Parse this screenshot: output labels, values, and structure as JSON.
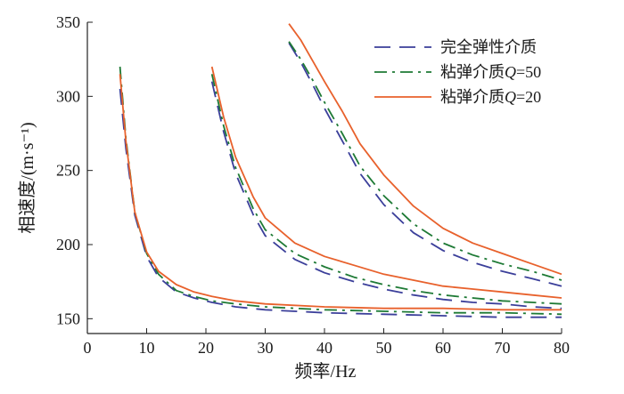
{
  "chart_data": {
    "type": "line",
    "xlabel": "频率/Hz",
    "ylabel": "相速度/(m·s⁻¹)",
    "xlim": [
      0,
      80
    ],
    "ylim": [
      140,
      350
    ],
    "xticks": [
      0,
      10,
      20,
      30,
      40,
      50,
      60,
      70,
      80
    ],
    "yticks": [
      150,
      200,
      250,
      300,
      350
    ],
    "grid": false,
    "legend_position": "top-right",
    "legend": [
      {
        "label_main": "完全弹性介质",
        "label_q": "",
        "label_eq": "",
        "color": "#3b3f9a",
        "dash": "18,10"
      },
      {
        "label_main": "粘弹介质",
        "label_q": "Q",
        "label_eq": "=50",
        "color": "#1e7a35",
        "dash": "14,6,3,6"
      },
      {
        "label_main": "粘弹介质",
        "label_q": "Q",
        "label_eq": "=20",
        "color": "#e8612c",
        "dash": ""
      }
    ],
    "series": [
      {
        "legend_index": 0,
        "mode": 0,
        "x": [
          5.5,
          6.5,
          8,
          10,
          12,
          15,
          18,
          21,
          25,
          30,
          40,
          50,
          60,
          70,
          80
        ],
        "y": [
          305,
          265,
          220,
          192,
          178,
          168,
          164,
          161,
          158,
          156,
          154,
          153,
          152,
          151,
          151
        ]
      },
      {
        "legend_index": 1,
        "mode": 0,
        "x": [
          5.5,
          6.5,
          8,
          10,
          12,
          15,
          18,
          21,
          25,
          30,
          40,
          50,
          60,
          70,
          80
        ],
        "y": [
          320,
          272,
          222,
          194,
          180,
          169,
          165,
          162,
          160,
          158,
          156,
          155,
          154,
          154,
          153
        ]
      },
      {
        "legend_index": 2,
        "mode": 0,
        "x": [
          5.5,
          6.5,
          8,
          10,
          12,
          15,
          18,
          21,
          25,
          30,
          40,
          50,
          60,
          70,
          80
        ],
        "y": [
          315,
          270,
          222,
          195,
          182,
          173,
          168,
          165,
          162,
          160,
          158,
          157,
          157,
          156,
          156
        ]
      },
      {
        "legend_index": 0,
        "mode": 1,
        "x": [
          21,
          23,
          25,
          28,
          30,
          35,
          40,
          45,
          50,
          55,
          60,
          65,
          70,
          75,
          80
        ],
        "y": [
          310,
          276,
          248,
          220,
          206,
          190,
          181,
          175,
          170,
          166,
          163,
          161,
          160,
          158,
          157
        ]
      },
      {
        "legend_index": 1,
        "mode": 1,
        "x": [
          21,
          23,
          25,
          28,
          30,
          35,
          40,
          45,
          50,
          55,
          60,
          65,
          70,
          75,
          80
        ],
        "y": [
          315,
          280,
          252,
          224,
          210,
          194,
          185,
          178,
          173,
          169,
          166,
          164,
          162,
          161,
          160
        ]
      },
      {
        "legend_index": 2,
        "mode": 1,
        "x": [
          21,
          23,
          25,
          28,
          30,
          35,
          40,
          45,
          50,
          55,
          60,
          65,
          70,
          75,
          80
        ],
        "y": [
          320,
          286,
          259,
          232,
          218,
          201,
          192,
          186,
          180,
          176,
          172,
          170,
          168,
          166,
          164
        ]
      },
      {
        "legend_index": 0,
        "mode": 2,
        "x": [
          34,
          36,
          38,
          40,
          43,
          46,
          50,
          55,
          60,
          65,
          70,
          75,
          80
        ],
        "y": [
          336,
          323,
          308,
          292,
          270,
          248,
          227,
          208,
          196,
          188,
          182,
          177,
          172
        ]
      },
      {
        "legend_index": 1,
        "mode": 2,
        "x": [
          34,
          36,
          38,
          40,
          43,
          46,
          50,
          55,
          60,
          65,
          70,
          75,
          80
        ],
        "y": [
          337,
          325,
          311,
          296,
          275,
          253,
          233,
          214,
          201,
          193,
          187,
          182,
          176
        ]
      },
      {
        "legend_index": 2,
        "mode": 2,
        "x": [
          34,
          36,
          38,
          40,
          43,
          46,
          50,
          55,
          60,
          65,
          70,
          75,
          80
        ],
        "y": [
          349,
          338,
          324,
          310,
          290,
          268,
          247,
          226,
          211,
          201,
          194,
          187,
          180
        ]
      }
    ]
  }
}
